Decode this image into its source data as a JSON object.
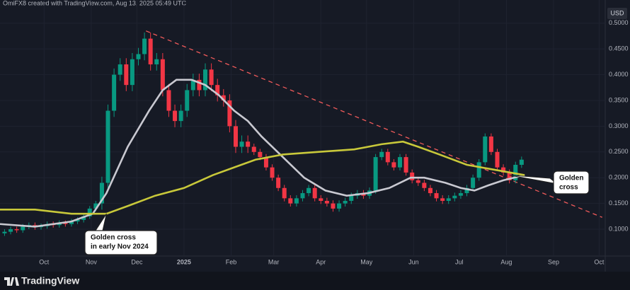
{
  "chart_data": {
    "type": "candlestick",
    "header": "OmiFX8 created with TradingView.com, Aug 13, 2025 05:49 UTC",
    "currency": "USD",
    "brand": "TradingView",
    "up_color": "#089981",
    "down_color": "#f23645",
    "grid": true,
    "xlim": [
      -29,
      369
    ],
    "xticks": [
      {
        "value": 0,
        "label": "Oct"
      },
      {
        "value": 31,
        "label": "Nov"
      },
      {
        "value": 61,
        "label": "Dec"
      },
      {
        "value": 92,
        "label": "2025"
      },
      {
        "value": 123,
        "label": "Feb"
      },
      {
        "value": 151,
        "label": "Mar"
      },
      {
        "value": 182,
        "label": "Apr"
      },
      {
        "value": 212,
        "label": "May"
      },
      {
        "value": 243,
        "label": "Jun"
      },
      {
        "value": 273,
        "label": "Jul"
      },
      {
        "value": 304,
        "label": "Aug"
      },
      {
        "value": 335,
        "label": "Sep"
      },
      {
        "value": 365,
        "label": "Oct"
      }
    ],
    "ylim": [
      0.03,
      0.545
    ],
    "yticks": [
      {
        "value": 0.1,
        "label": "0.1000"
      },
      {
        "value": 0.15,
        "label": "0.1500"
      },
      {
        "value": 0.2,
        "label": "0.2000"
      },
      {
        "value": 0.25,
        "label": "0.2500"
      },
      {
        "value": 0.3,
        "label": "0.3000"
      },
      {
        "value": 0.35,
        "label": "0.3500"
      },
      {
        "value": 0.4,
        "label": "0.4000"
      },
      {
        "value": 0.45,
        "label": "0.4500"
      },
      {
        "value": 0.5,
        "label": "0.5000"
      }
    ],
    "x": [
      -26,
      -22,
      -18,
      -14,
      -10,
      -6,
      -2,
      2,
      6,
      10,
      14,
      18,
      22,
      26,
      30,
      34,
      38,
      42,
      46,
      50,
      54,
      58,
      62,
      66,
      70,
      74,
      78,
      82,
      86,
      90,
      94,
      98,
      102,
      106,
      110,
      114,
      118,
      122,
      126,
      130,
      134,
      138,
      142,
      146,
      150,
      154,
      158,
      162,
      166,
      170,
      174,
      178,
      182,
      186,
      190,
      194,
      198,
      202,
      206,
      210,
      214,
      218,
      222,
      226,
      230,
      234,
      238,
      242,
      246,
      250,
      254,
      258,
      262,
      266,
      270,
      274,
      278,
      282,
      286,
      290,
      294,
      298,
      302,
      306,
      310,
      314
    ],
    "open": [
      0.092,
      0.095,
      0.1,
      0.098,
      0.105,
      0.108,
      0.104,
      0.106,
      0.11,
      0.108,
      0.112,
      0.11,
      0.115,
      0.118,
      0.125,
      0.14,
      0.15,
      0.19,
      0.33,
      0.4,
      0.42,
      0.38,
      0.43,
      0.44,
      0.47,
      0.42,
      0.43,
      0.37,
      0.33,
      0.31,
      0.33,
      0.37,
      0.39,
      0.37,
      0.41,
      0.38,
      0.36,
      0.35,
      0.3,
      0.26,
      0.27,
      0.26,
      0.25,
      0.24,
      0.22,
      0.2,
      0.18,
      0.16,
      0.15,
      0.16,
      0.17,
      0.18,
      0.16,
      0.155,
      0.15,
      0.14,
      0.15,
      0.155,
      0.165,
      0.17,
      0.165,
      0.175,
      0.24,
      0.25,
      0.23,
      0.22,
      0.24,
      0.21,
      0.195,
      0.19,
      0.18,
      0.17,
      0.16,
      0.155,
      0.16,
      0.165,
      0.17,
      0.18,
      0.2,
      0.23,
      0.28,
      0.25,
      0.22,
      0.21,
      0.195,
      0.225
    ],
    "high": [
      0.1,
      0.105,
      0.105,
      0.11,
      0.113,
      0.113,
      0.111,
      0.115,
      0.115,
      0.117,
      0.117,
      0.12,
      0.123,
      0.13,
      0.145,
      0.155,
      0.202,
      0.342,
      0.412,
      0.432,
      0.432,
      0.442,
      0.452,
      0.482,
      0.482,
      0.442,
      0.442,
      0.382,
      0.342,
      0.342,
      0.382,
      0.402,
      0.402,
      0.422,
      0.422,
      0.392,
      0.372,
      0.362,
      0.312,
      0.282,
      0.282,
      0.266,
      0.256,
      0.246,
      0.226,
      0.206,
      0.186,
      0.166,
      0.166,
      0.176,
      0.186,
      0.186,
      0.166,
      0.161,
      0.156,
      0.156,
      0.161,
      0.171,
      0.176,
      0.176,
      0.181,
      0.246,
      0.256,
      0.256,
      0.236,
      0.246,
      0.246,
      0.216,
      0.201,
      0.196,
      0.186,
      0.176,
      0.166,
      0.166,
      0.171,
      0.176,
      0.186,
      0.206,
      0.236,
      0.286,
      0.286,
      0.256,
      0.226,
      0.216,
      0.231,
      0.241
    ],
    "low": [
      0.087,
      0.09,
      0.093,
      0.093,
      0.1,
      0.099,
      0.099,
      0.101,
      0.103,
      0.103,
      0.105,
      0.105,
      0.11,
      0.113,
      0.12,
      0.135,
      0.138,
      0.178,
      0.318,
      0.388,
      0.368,
      0.368,
      0.418,
      0.428,
      0.408,
      0.408,
      0.358,
      0.318,
      0.298,
      0.298,
      0.318,
      0.358,
      0.358,
      0.358,
      0.368,
      0.348,
      0.338,
      0.288,
      0.248,
      0.248,
      0.248,
      0.244,
      0.234,
      0.214,
      0.194,
      0.174,
      0.154,
      0.144,
      0.144,
      0.154,
      0.164,
      0.154,
      0.149,
      0.144,
      0.134,
      0.134,
      0.144,
      0.149,
      0.159,
      0.159,
      0.159,
      0.169,
      0.234,
      0.224,
      0.214,
      0.214,
      0.204,
      0.189,
      0.184,
      0.174,
      0.164,
      0.154,
      0.149,
      0.149,
      0.154,
      0.159,
      0.164,
      0.174,
      0.194,
      0.224,
      0.244,
      0.214,
      0.204,
      0.189,
      0.189,
      0.219
    ],
    "close": [
      0.095,
      0.1,
      0.098,
      0.105,
      0.108,
      0.104,
      0.106,
      0.11,
      0.108,
      0.112,
      0.11,
      0.115,
      0.118,
      0.125,
      0.14,
      0.15,
      0.19,
      0.33,
      0.4,
      0.42,
      0.38,
      0.43,
      0.44,
      0.47,
      0.42,
      0.43,
      0.37,
      0.33,
      0.31,
      0.33,
      0.37,
      0.39,
      0.37,
      0.41,
      0.38,
      0.36,
      0.35,
      0.3,
      0.26,
      0.27,
      0.26,
      0.25,
      0.24,
      0.22,
      0.2,
      0.18,
      0.16,
      0.15,
      0.16,
      0.17,
      0.18,
      0.16,
      0.155,
      0.15,
      0.14,
      0.15,
      0.155,
      0.165,
      0.17,
      0.165,
      0.175,
      0.24,
      0.25,
      0.23,
      0.22,
      0.24,
      0.21,
      0.195,
      0.19,
      0.18,
      0.17,
      0.16,
      0.155,
      0.16,
      0.165,
      0.17,
      0.18,
      0.2,
      0.23,
      0.28,
      0.25,
      0.22,
      0.21,
      0.195,
      0.225,
      0.235
    ],
    "moving_averages": [
      {
        "color": "#c9c9d1",
        "x": [
          -29,
          -6,
          18,
          32,
          41,
          55,
          69,
          78,
          87,
          97,
          106,
          115,
          125,
          134,
          143,
          157,
          171,
          185,
          199,
          213,
          227,
          241,
          250,
          264,
          274,
          283,
          292,
          302,
          316
        ],
        "values": [
          0.11,
          0.105,
          0.115,
          0.13,
          0.17,
          0.26,
          0.33,
          0.37,
          0.39,
          0.39,
          0.38,
          0.36,
          0.33,
          0.31,
          0.28,
          0.24,
          0.2,
          0.175,
          0.165,
          0.17,
          0.18,
          0.2,
          0.2,
          0.19,
          0.18,
          0.175,
          0.185,
          0.195,
          0.205
        ]
      },
      {
        "color": "#c8c83a",
        "x": [
          -29,
          -6,
          18,
          41,
          55,
          73,
          92,
          111,
          125,
          139,
          157,
          180,
          204,
          222,
          236,
          246,
          260,
          278,
          297,
          316
        ],
        "values": [
          0.138,
          0.138,
          0.13,
          0.13,
          0.145,
          0.165,
          0.18,
          0.205,
          0.22,
          0.235,
          0.245,
          0.25,
          0.255,
          0.265,
          0.27,
          0.26,
          0.245,
          0.225,
          0.215,
          0.205
        ]
      }
    ],
    "trendline": {
      "color": "#f05a5a",
      "x": [
        67,
        367
      ],
      "values": [
        0.485,
        0.123
      ]
    },
    "annotations": [
      {
        "lines": [
          "Golden cross",
          "in early Nov 2024"
        ],
        "x": 41,
        "y": 0.13
      },
      {
        "lines": [
          "Golden",
          "cross"
        ],
        "x": 306,
        "y": 0.205
      }
    ]
  }
}
